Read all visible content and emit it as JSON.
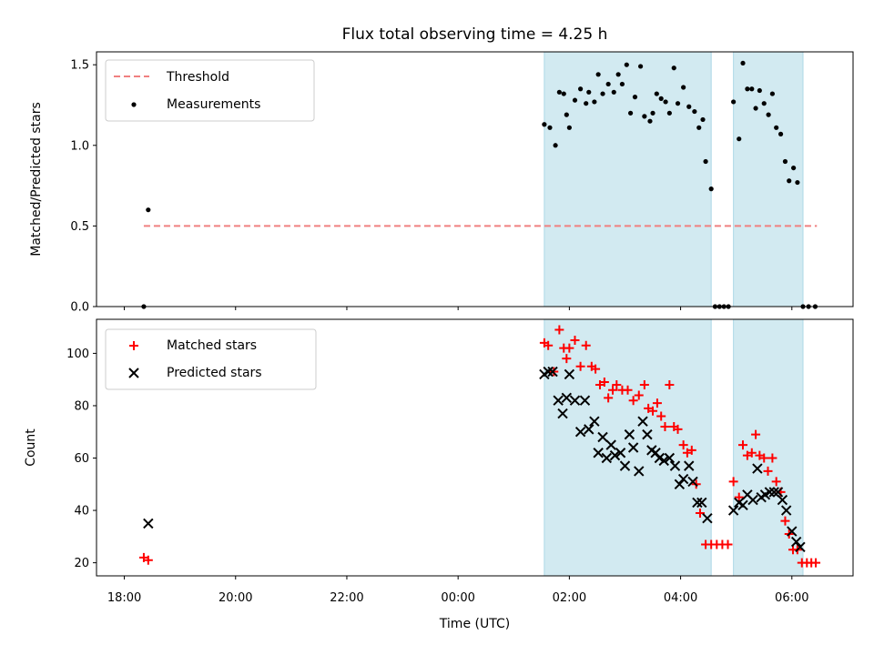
{
  "title": "Flux total observing time = 4.25 h",
  "colors": {
    "threshold": "#f08080",
    "measurement": "#000000",
    "matched": "#ff0000",
    "predicted": "#000000",
    "shade": "#add8e6"
  },
  "chart_data": [
    {
      "type": "scatter",
      "title": "Flux total observing time = 4.25 h",
      "xlabel": "",
      "ylabel": "Matched/Predicted stars",
      "x_unit": "hours since 18:00 UTC",
      "xlim": [
        -0.5,
        13.1
      ],
      "ylim": [
        0,
        1.58
      ],
      "yticks": [
        0.0,
        0.5,
        1.0,
        1.5
      ],
      "ytick_labels": [
        "0.0",
        "0.5",
        "1.0",
        "1.5"
      ],
      "legend": "top-left",
      "shaded_intervals": [
        [
          7.55,
          10.55
        ],
        [
          10.95,
          12.2
        ]
      ],
      "threshold": {
        "name": "Threshold",
        "value": 0.5,
        "x_range": [
          0.35,
          12.45
        ]
      },
      "series": [
        {
          "name": "Measurements",
          "points": [
            [
              0.35,
              0.0
            ],
            [
              0.43,
              0.6
            ],
            [
              7.55,
              1.13
            ],
            [
              7.65,
              1.11
            ],
            [
              7.75,
              1.0
            ],
            [
              7.82,
              1.33
            ],
            [
              7.9,
              1.32
            ],
            [
              7.95,
              1.19
            ],
            [
              8.0,
              1.11
            ],
            [
              8.1,
              1.28
            ],
            [
              8.2,
              1.35
            ],
            [
              8.3,
              1.26
            ],
            [
              8.35,
              1.33
            ],
            [
              8.45,
              1.27
            ],
            [
              8.52,
              1.44
            ],
            [
              8.6,
              1.32
            ],
            [
              8.7,
              1.38
            ],
            [
              8.8,
              1.33
            ],
            [
              8.88,
              1.44
            ],
            [
              8.95,
              1.38
            ],
            [
              9.03,
              1.5
            ],
            [
              9.1,
              1.2
            ],
            [
              9.18,
              1.3
            ],
            [
              9.28,
              1.49
            ],
            [
              9.35,
              1.18
            ],
            [
              9.45,
              1.15
            ],
            [
              9.5,
              1.2
            ],
            [
              9.57,
              1.32
            ],
            [
              9.65,
              1.29
            ],
            [
              9.73,
              1.27
            ],
            [
              9.8,
              1.2
            ],
            [
              9.88,
              1.48
            ],
            [
              9.95,
              1.26
            ],
            [
              10.05,
              1.36
            ],
            [
              10.15,
              1.24
            ],
            [
              10.25,
              1.21
            ],
            [
              10.33,
              1.11
            ],
            [
              10.4,
              1.16
            ],
            [
              10.45,
              0.9
            ],
            [
              10.55,
              0.73
            ],
            [
              10.62,
              0.0
            ],
            [
              10.7,
              0.0
            ],
            [
              10.78,
              0.0
            ],
            [
              10.86,
              0.0
            ],
            [
              10.95,
              1.27
            ],
            [
              11.05,
              1.04
            ],
            [
              11.12,
              1.51
            ],
            [
              11.2,
              1.35
            ],
            [
              11.28,
              1.35
            ],
            [
              11.35,
              1.23
            ],
            [
              11.42,
              1.34
            ],
            [
              11.5,
              1.26
            ],
            [
              11.58,
              1.19
            ],
            [
              11.65,
              1.32
            ],
            [
              11.72,
              1.11
            ],
            [
              11.8,
              1.07
            ],
            [
              11.88,
              0.9
            ],
            [
              11.95,
              0.78
            ],
            [
              12.03,
              0.86
            ],
            [
              12.1,
              0.77
            ],
            [
              12.2,
              0.0
            ],
            [
              12.3,
              0.0
            ],
            [
              12.42,
              0.0
            ]
          ]
        }
      ]
    },
    {
      "type": "scatter",
      "xlabel": "Time (UTC)",
      "ylabel": "Count",
      "x_unit": "hours since 18:00 UTC",
      "xlim": [
        -0.5,
        13.1
      ],
      "ylim": [
        15,
        113
      ],
      "yticks": [
        20,
        40,
        60,
        80,
        100
      ],
      "ytick_labels": [
        "20",
        "40",
        "60",
        "80",
        "100"
      ],
      "xticks": [
        0,
        2,
        4,
        6,
        8,
        10,
        12
      ],
      "xtick_labels": [
        "18:00",
        "20:00",
        "22:00",
        "00:00",
        "02:00",
        "04:00",
        "06:00"
      ],
      "legend": "top-left",
      "shaded_intervals": [
        [
          7.55,
          10.55
        ],
        [
          10.95,
          12.2
        ]
      ],
      "series": [
        {
          "name": "Matched stars",
          "marker": "plus",
          "points": [
            [
              0.35,
              22
            ],
            [
              0.43,
              21
            ],
            [
              7.55,
              104
            ],
            [
              7.62,
              103
            ],
            [
              7.72,
              93
            ],
            [
              7.82,
              109
            ],
            [
              7.9,
              102
            ],
            [
              7.95,
              98
            ],
            [
              8.0,
              102
            ],
            [
              8.1,
              105
            ],
            [
              8.2,
              95
            ],
            [
              8.3,
              103
            ],
            [
              8.4,
              95
            ],
            [
              8.47,
              94
            ],
            [
              8.55,
              88
            ],
            [
              8.63,
              89
            ],
            [
              8.7,
              83
            ],
            [
              8.78,
              86
            ],
            [
              8.85,
              88
            ],
            [
              8.95,
              86
            ],
            [
              9.05,
              86
            ],
            [
              9.15,
              82
            ],
            [
              9.25,
              84
            ],
            [
              9.35,
              88
            ],
            [
              9.42,
              79
            ],
            [
              9.5,
              78
            ],
            [
              9.58,
              81
            ],
            [
              9.65,
              76
            ],
            [
              9.72,
              72
            ],
            [
              9.8,
              88
            ],
            [
              9.88,
              72
            ],
            [
              9.95,
              71
            ],
            [
              10.05,
              65
            ],
            [
              10.12,
              62
            ],
            [
              10.2,
              63
            ],
            [
              10.28,
              50
            ],
            [
              10.35,
              39
            ],
            [
              10.45,
              27
            ],
            [
              10.55,
              27
            ],
            [
              10.65,
              27
            ],
            [
              10.75,
              27
            ],
            [
              10.85,
              27
            ],
            [
              10.95,
              51
            ],
            [
              11.05,
              45
            ],
            [
              11.12,
              65
            ],
            [
              11.2,
              61
            ],
            [
              11.28,
              62
            ],
            [
              11.35,
              69
            ],
            [
              11.42,
              61
            ],
            [
              11.5,
              60
            ],
            [
              11.57,
              55
            ],
            [
              11.65,
              60
            ],
            [
              11.72,
              51
            ],
            [
              11.8,
              47
            ],
            [
              11.88,
              36
            ],
            [
              11.95,
              31
            ],
            [
              12.02,
              25
            ],
            [
              12.1,
              25
            ],
            [
              12.18,
              20
            ],
            [
              12.27,
              20
            ],
            [
              12.35,
              20
            ],
            [
              12.43,
              20
            ]
          ]
        },
        {
          "name": "Predicted stars",
          "marker": "x",
          "points": [
            [
              0.43,
              35
            ],
            [
              7.55,
              92
            ],
            [
              7.62,
              93
            ],
            [
              7.7,
              93
            ],
            [
              7.8,
              82
            ],
            [
              7.88,
              77
            ],
            [
              7.95,
              83
            ],
            [
              8.0,
              92
            ],
            [
              8.1,
              82
            ],
            [
              8.2,
              70
            ],
            [
              8.28,
              82
            ],
            [
              8.35,
              71
            ],
            [
              8.45,
              74
            ],
            [
              8.52,
              62
            ],
            [
              8.6,
              68
            ],
            [
              8.67,
              60
            ],
            [
              8.75,
              65
            ],
            [
              8.82,
              61
            ],
            [
              8.92,
              62
            ],
            [
              9.0,
              57
            ],
            [
              9.08,
              69
            ],
            [
              9.15,
              64
            ],
            [
              9.25,
              55
            ],
            [
              9.32,
              74
            ],
            [
              9.4,
              69
            ],
            [
              9.48,
              63
            ],
            [
              9.55,
              62
            ],
            [
              9.62,
              60
            ],
            [
              9.7,
              59
            ],
            [
              9.8,
              60
            ],
            [
              9.9,
              57
            ],
            [
              9.98,
              50
            ],
            [
              10.05,
              52
            ],
            [
              10.15,
              57
            ],
            [
              10.22,
              51
            ],
            [
              10.3,
              43
            ],
            [
              10.38,
              43
            ],
            [
              10.48,
              37
            ],
            [
              10.95,
              40
            ],
            [
              11.05,
              43
            ],
            [
              11.12,
              42
            ],
            [
              11.2,
              46
            ],
            [
              11.3,
              44
            ],
            [
              11.38,
              56
            ],
            [
              11.45,
              45
            ],
            [
              11.52,
              46
            ],
            [
              11.6,
              47
            ],
            [
              11.68,
              47
            ],
            [
              11.75,
              47
            ],
            [
              11.83,
              44
            ],
            [
              11.9,
              40
            ],
            [
              12.0,
              32
            ],
            [
              12.08,
              28
            ],
            [
              12.15,
              26
            ]
          ]
        }
      ]
    }
  ]
}
